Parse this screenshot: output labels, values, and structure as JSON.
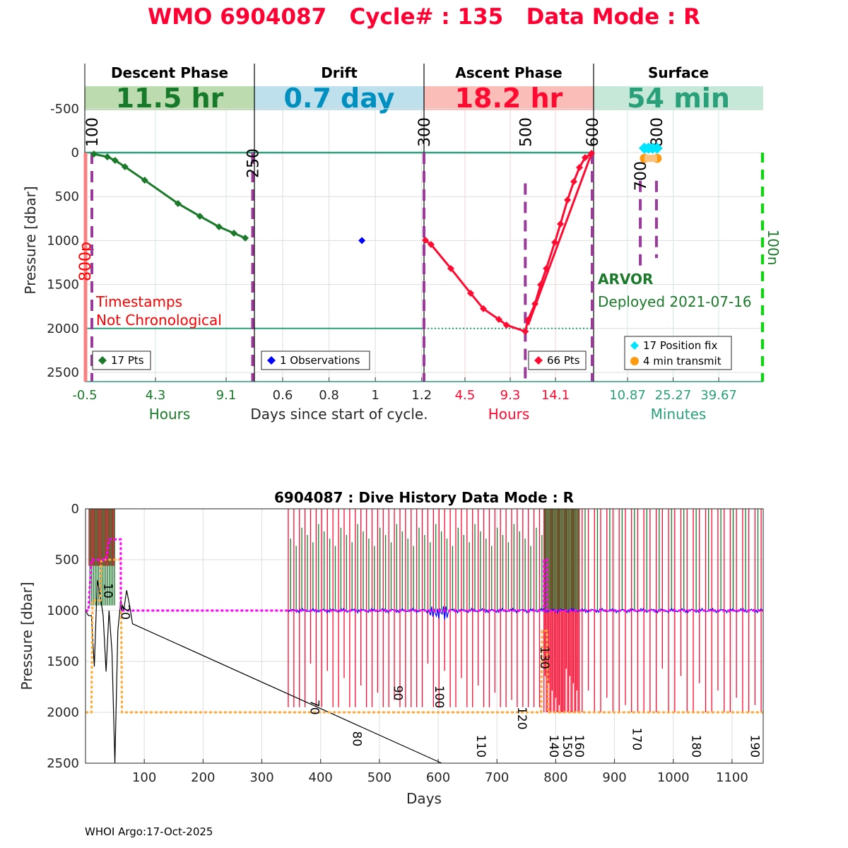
{
  "title": "WMO 6904087   Cycle# : 135   Data Mode : R",
  "footer": "WHOI Argo:17-Oct-2025",
  "colors": {
    "title": "#ff0033",
    "descent": "#1a7a2a",
    "drift": "#0000ff",
    "ascent": "#ff0a30",
    "surface": "#2aa07a",
    "event": "#9b3a9b"
  },
  "chart_data": [
    {
      "type": "line",
      "title": "Cycle phases",
      "ylabel": "Pressure [dbar]",
      "xlabel": "Days since start of cycle.",
      "ylim": [
        2600,
        -750
      ],
      "yticks": [
        -500,
        0,
        500,
        1000,
        1500,
        2000,
        2500
      ],
      "panels": [
        {
          "name": "Descent Phase",
          "duration": "11.5 hr",
          "band_color": "#bcdcb0",
          "text_color": "#177a2a",
          "xlabel": "Hours",
          "xlabel_color": "#1a7a2a",
          "xlim": [
            -0.5,
            11.02
          ],
          "xticks": [
            -0.5,
            4.3,
            9.1
          ],
          "xtick_labels": [
            "-0.5",
            "4.3",
            "9.1"
          ],
          "series": {
            "name": "17 Pts",
            "color": "#1a7a2a",
            "x": [
              0.12,
              1.03,
              1.56,
              2.23,
              3.57,
              5.83,
              7.32,
              8.62,
              9.63,
              10.4
            ],
            "y": [
              16,
              48,
              88,
              161,
              314,
              579,
              723,
              844,
              916,
              972
            ]
          }
        },
        {
          "name": "Drift",
          "duration": "0.7 day",
          "band_color": "#bde0ec",
          "text_color": "#0090c0",
          "xlabel": "Days since start of cycle.",
          "xlabel_color": "#333333",
          "xlim": [
            0.478,
            1.21
          ],
          "xticks": [
            0.6,
            0.8,
            1.0,
            1.2
          ],
          "xtick_labels": [
            "0.6",
            "0.8",
            "1",
            "1.2"
          ],
          "series": {
            "name": "1 Observations",
            "color": "#0000ff",
            "x": [
              0.942
            ],
            "y": [
              1000
            ]
          }
        },
        {
          "name": "Ascent Phase",
          "duration": "18.2 hr",
          "band_color": "#fbbdb8",
          "text_color": "#ff0a30",
          "xlabel": "Hours",
          "xlabel_color": "#ff0a30",
          "xlim": [
            0.15,
            18.15
          ],
          "xticks": [
            4.5,
            9.3,
            14.1
          ],
          "xtick_labels": [
            "4.5",
            "9.3",
            "14.1"
          ],
          "series": {
            "name": "66 Pts",
            "color": "#ff0a30",
            "x": [
              0.3,
              0.9,
              3.0,
              5.1,
              6.45,
              8.1,
              8.9,
              10.9,
              11.18,
              11.93,
              12.53,
              13.13,
              14.03,
              14.63,
              15.38,
              16.05,
              16.65,
              17.25,
              17.93
            ],
            "y": [
              997,
              1045,
              1318,
              1600,
              1776,
              1897,
              1961,
              2034,
              1905,
              1720,
              1503,
              1318,
              1021,
              812,
              539,
              330,
              169,
              56,
              8
            ]
          }
        },
        {
          "name": "Surface",
          "duration": "54 min",
          "band_color": "#c6e8d8",
          "text_color": "#2aa07a",
          "xlabel": "Minutes",
          "xlabel_color": "#2aa07a",
          "xlim": [
            0.16,
            53.7
          ],
          "xticks": [
            10.87,
            25.27,
            39.67
          ],
          "xtick_labels": [
            "10.87",
            "25.27",
            "39.67"
          ],
          "series": [
            {
              "name": "17 Position fix",
              "color": "#00e5ff",
              "x": [
                16.2,
                17.5,
                18.8,
                20.2
              ],
              "y": [
                -50,
                -50,
                -50,
                -50
              ]
            },
            {
              "name": "4 min transmit",
              "color": "#ff9a10",
              "x": [
                16.2,
                20.2
              ],
              "y": [
                65,
                65
              ]
            }
          ]
        }
      ],
      "event_markers": [
        {
          "label": "100",
          "panel": 0,
          "x": -0.02,
          "from": 0,
          "to": 2600
        },
        {
          "label": "250",
          "panel": 0,
          "x": 10.9,
          "from": 0,
          "to": 2600
        },
        {
          "label": "300",
          "panel": 2,
          "x": 0.15,
          "from": 0,
          "to": 2600
        },
        {
          "label": "500",
          "panel": 2,
          "x": 10.9,
          "from": 350,
          "to": 2600
        },
        {
          "label": "600",
          "panel": 2,
          "x": 18.0,
          "from": 0,
          "to": 2600
        },
        {
          "label": "700",
          "panel": 3,
          "x": 14.9,
          "from": 320,
          "to": 1300
        },
        {
          "label": "800",
          "panel": 3,
          "x": 20.0,
          "from": 320,
          "to": 1200
        }
      ],
      "marker_800p": "800p",
      "marker_100n": "100n",
      "warning": [
        "Timestamps",
        "Not Chronological"
      ],
      "float_type": "ARVOR",
      "deployed": "Deployed 2021-07-16",
      "reference_lines": [
        0,
        2000
      ]
    },
    {
      "type": "line",
      "title": "6904087 : Dive History      Data Mode : R",
      "xlabel": "Days",
      "ylabel": "Pressure [dbar]",
      "xlim": [
        0,
        1153
      ],
      "ylim": [
        2500,
        0
      ],
      "xticks": [
        100,
        200,
        300,
        400,
        500,
        600,
        700,
        800,
        900,
        1000,
        1100
      ],
      "yticks": [
        0,
        500,
        1000,
        1500,
        2000,
        2500
      ],
      "profile_groups": [
        {
          "start": 6,
          "end": 50,
          "step": 3,
          "top": 0,
          "bottom": 560,
          "color": "#ff0a30"
        },
        {
          "start": 7.5,
          "end": 52,
          "step": 3,
          "top": 0,
          "bottom": 950,
          "color": "#1a7a2a"
        },
        {
          "start": 345,
          "end": 785,
          "step": 9.5,
          "top": 0,
          "bottom": 1950,
          "color": "#ff0a30"
        },
        {
          "start": 349,
          "end": 780,
          "step": 9.5,
          "top": 150,
          "bottom": 1000,
          "color": "#1a7a2a"
        },
        {
          "start": 780,
          "end": 840,
          "step": 2,
          "top": 0,
          "bottom": 2000,
          "color": "#ff0a30"
        },
        {
          "start": 781,
          "end": 840,
          "step": 2.4,
          "top": 0,
          "bottom": 1000,
          "color": "#1a7a2a"
        },
        {
          "start": 845,
          "end": 1153,
          "step": 10.5,
          "top": 0,
          "bottom": 2000,
          "color": "#ff0a30"
        },
        {
          "start": 850,
          "end": 1153,
          "step": 21,
          "top": 0,
          "bottom": 1000,
          "color": "#1a7a2a"
        }
      ],
      "drift_line": {
        "color": "#0000ff",
        "start": 345,
        "end": 1153,
        "level": 1000
      },
      "trajectory": {
        "color": "#000000",
        "x": [
          0,
          5,
          10,
          15,
          20,
          25,
          30,
          35,
          40,
          45,
          50,
          55,
          60,
          65,
          70,
          75,
          80,
          606
        ],
        "y": [
          1000,
          1050,
          1050,
          1550,
          700,
          850,
          1050,
          1600,
          1000,
          1400,
          2500,
          1200,
          900,
          1000,
          800,
          950,
          1130,
          2500
        ]
      },
      "park_target": {
        "color": "#ff00ff",
        "x": [
          0,
          5,
          10,
          35,
          40,
          60,
          60,
          780,
          780,
          785,
          785,
          1153
        ],
        "y": [
          1000,
          1000,
          500,
          500,
          300,
          300,
          1000,
          1000,
          500,
          500,
          1000,
          1000
        ]
      },
      "profile_target": {
        "color": "#ffaa33",
        "x": [
          0,
          10,
          12,
          25,
          27,
          60,
          62,
          775,
          777,
          785,
          787,
          1153
        ],
        "y": [
          2000,
          2000,
          900,
          900,
          500,
          500,
          2000,
          2000,
          1200,
          1200,
          2000,
          2000
        ]
      },
      "cycle_labels": [
        {
          "label": "10",
          "x": 31,
          "y": 730
        },
        {
          "label": "20",
          "x": 61,
          "y": 940
        },
        {
          "label": "70",
          "x": 383,
          "y": 1875
        },
        {
          "label": "80",
          "x": 455,
          "y": 2185
        },
        {
          "label": "90",
          "x": 525,
          "y": 1735
        },
        {
          "label": "100",
          "x": 595,
          "y": 1735
        },
        {
          "label": "110",
          "x": 666,
          "y": 2220
        },
        {
          "label": "120",
          "x": 736,
          "y": 1945
        },
        {
          "label": "130",
          "x": 774,
          "y": 1350
        },
        {
          "label": "140",
          "x": 790,
          "y": 2220
        },
        {
          "label": "150",
          "x": 813,
          "y": 2220
        },
        {
          "label": "160",
          "x": 833,
          "y": 2220
        },
        {
          "label": "170",
          "x": 931,
          "y": 2150
        },
        {
          "label": "180",
          "x": 1032,
          "y": 2220
        },
        {
          "label": "190",
          "x": 1132,
          "y": 2220
        }
      ]
    }
  ]
}
